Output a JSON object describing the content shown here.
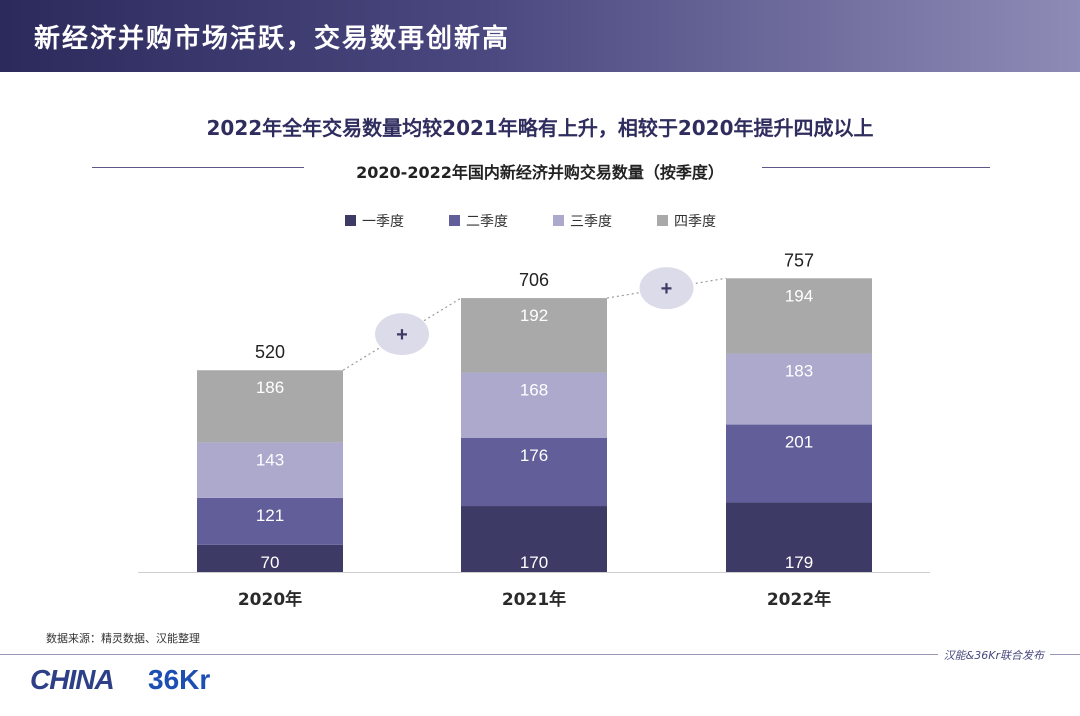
{
  "header": {
    "title": "新经济并购市场活跃，交易数再创新高"
  },
  "headline": "2022年全年交易数量均较2021年略有上升，相较于2020年提升四成以上",
  "chart_data": {
    "type": "bar",
    "stacked": true,
    "title": "2020-2022年国内新经济并购交易数量（按季度）",
    "categories": [
      "2020年",
      "2021年",
      "2022年"
    ],
    "series": [
      {
        "name": "一季度",
        "color": "#3e3a66",
        "values": [
          70,
          170,
          179
        ]
      },
      {
        "name": "二季度",
        "color": "#625e99",
        "values": [
          121,
          176,
          201
        ]
      },
      {
        "name": "三季度",
        "color": "#aca9cd",
        "values": [
          143,
          168,
          183
        ]
      },
      {
        "name": "四季度",
        "color": "#a9a9a9",
        "values": [
          186,
          192,
          194
        ]
      }
    ],
    "totals": [
      520,
      706,
      757
    ],
    "connector_label": "+",
    "legend_position": "top",
    "ylim": [
      0,
      800
    ],
    "grid": false
  },
  "source": "数据来源：精灵数据、汉能整理",
  "footer": {
    "publisher": "汉能&36Kr联合发布"
  },
  "logos": {
    "china": "CHINA",
    "kr": "36Kr"
  }
}
